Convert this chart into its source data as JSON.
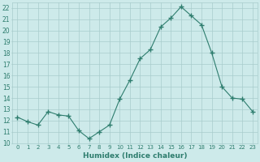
{
  "x": [
    0,
    1,
    2,
    3,
    4,
    5,
    6,
    7,
    8,
    9,
    10,
    11,
    12,
    13,
    14,
    15,
    16,
    17,
    18,
    19,
    20,
    21,
    22,
    23
  ],
  "y": [
    12.3,
    11.9,
    11.6,
    12.8,
    12.5,
    12.4,
    11.1,
    10.4,
    11.0,
    11.6,
    13.9,
    15.6,
    17.5,
    18.3,
    20.3,
    21.1,
    22.1,
    21.3,
    20.5,
    18.0,
    15.0,
    14.0,
    13.9,
    12.8
  ],
  "xlabel": "Humidex (Indice chaleur)",
  "line_color": "#2e7d6e",
  "marker": "+",
  "marker_size": 4,
  "bg_color": "#cdeaea",
  "grid_color": "#a8cccc",
  "tick_label_color": "#2e7d6e",
  "xlim": [
    -0.5,
    23.5
  ],
  "ylim": [
    10,
    22.5
  ],
  "yticks": [
    10,
    11,
    12,
    13,
    14,
    15,
    16,
    17,
    18,
    19,
    20,
    21,
    22
  ],
  "xticks": [
    0,
    1,
    2,
    3,
    4,
    5,
    6,
    7,
    8,
    9,
    10,
    11,
    12,
    13,
    14,
    15,
    16,
    17,
    18,
    19,
    20,
    21,
    22,
    23
  ]
}
